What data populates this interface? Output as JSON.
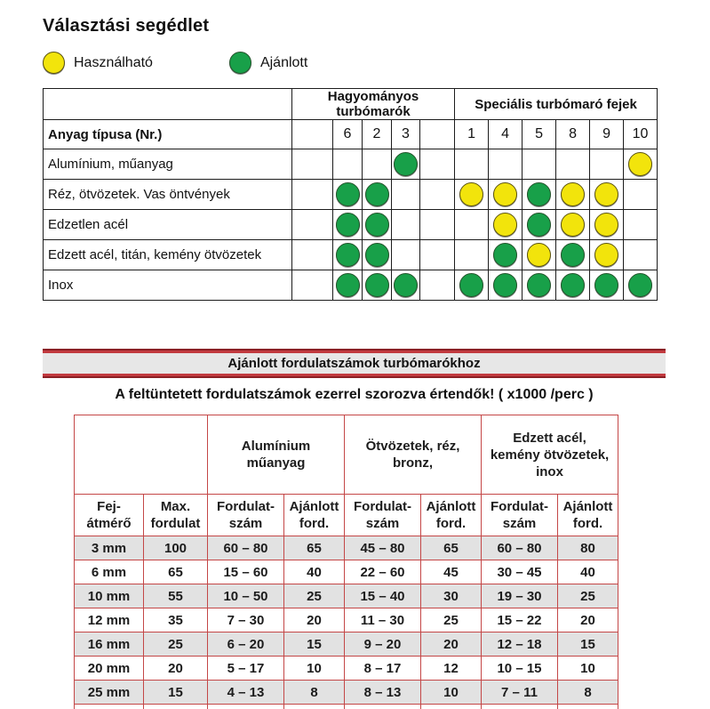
{
  "title": "Választási segédlet",
  "legend": {
    "usable_label": "Használható",
    "recommended_label": "Ajánlott"
  },
  "colors": {
    "usable_yellow": "#f2e40c",
    "recommended_green": "#18a049",
    "speed_table_border_red": "#c44747",
    "banner_dark_red": "#8b2025",
    "banner_bright_red": "#c23a3f",
    "banner_gray": "#e7e7e7",
    "row_alt_gray": "#e2e2e2"
  },
  "selection_table": {
    "group1": "Hagyományos turbómarók",
    "group2": "Speciális turbómaró fejek",
    "row_header": "Anyag típusa (Nr.)",
    "columns": [
      "",
      "6",
      "2",
      "3",
      "",
      "1",
      "4",
      "5",
      "8",
      "9",
      "10"
    ],
    "mark_key": {
      "G": "Ajánlott",
      "Y": "Használható"
    },
    "rows": [
      {
        "material": "Alumínium, műanyag",
        "marks": [
          "",
          "",
          "",
          "G",
          "",
          "",
          "",
          "",
          "",
          "",
          "Y"
        ]
      },
      {
        "material": "Réz, ötvözetek. Vas öntvények",
        "marks": [
          "",
          "G",
          "G",
          "",
          "",
          "Y",
          "Y",
          "G",
          "Y",
          "Y",
          ""
        ]
      },
      {
        "material": "Edzetlen acél",
        "marks": [
          "",
          "G",
          "G",
          "",
          "",
          "",
          "Y",
          "G",
          "Y",
          "Y",
          ""
        ]
      },
      {
        "material": "Edzett acél, titán, kemény ötvözetek",
        "marks": [
          "",
          "G",
          "G",
          "",
          "",
          "",
          "G",
          "Y",
          "G",
          "Y",
          ""
        ]
      },
      {
        "material": "Inox",
        "marks": [
          "",
          "G",
          "G",
          "G",
          "",
          "G",
          "G",
          "G",
          "G",
          "G",
          "G"
        ]
      }
    ]
  },
  "speed_section": {
    "banner": "Ajánlott fordulatszámok turbómarókhoz",
    "note": "A feltüntetett fordulatszámok ezerrel szorozva értendők! ( x1000 /perc )"
  },
  "speed_table": {
    "groups": [
      "Alumínium\nműanyag",
      "Ötvözetek, réz,\nbronz,",
      "Edzett acél,\nkemény ötvözetek,\ninox"
    ],
    "col_headers": [
      "Fej-\nátmérő",
      "Max.\nfordulat",
      "Fordulat-\nszám",
      "Ajánlott\nford.",
      "Fordulat-\nszám",
      "Ajánlott\nford.",
      "Fordulat-\nszám",
      "Ajánlott\nford."
    ],
    "rows": [
      [
        "3 mm",
        "100",
        "60 – 80",
        "65",
        "45 – 80",
        "65",
        "60 – 80",
        "80"
      ],
      [
        "6 mm",
        "65",
        "15 – 60",
        "40",
        "22 – 60",
        "45",
        "30 – 45",
        "40"
      ],
      [
        "10 mm",
        "55",
        "10 – 50",
        "25",
        "15 – 40",
        "30",
        "19 – 30",
        "25"
      ],
      [
        "12 mm",
        "35",
        "7 – 30",
        "20",
        "11 – 30",
        "25",
        "15 – 22",
        "20"
      ],
      [
        "16 mm",
        "25",
        "6 – 20",
        "15",
        "9 – 20",
        "20",
        "12 – 18",
        "15"
      ],
      [
        "20 mm",
        "20",
        "5 – 17",
        "10",
        "8 – 17",
        "12",
        "10 – 15",
        "10"
      ],
      [
        "25 mm",
        "15",
        "4 – 13",
        "8",
        "8 – 13",
        "10",
        "7 – 11",
        "8"
      ]
    ]
  }
}
